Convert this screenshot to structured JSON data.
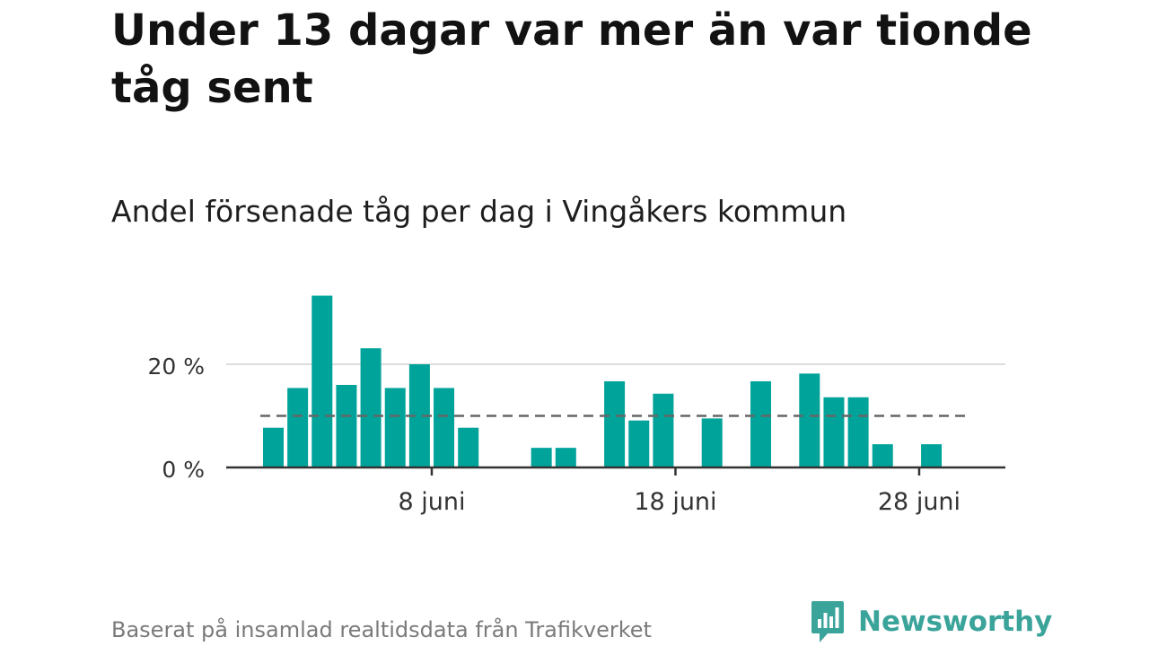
{
  "title": "Under 13 dagar var mer än var tionde tåg sent",
  "subtitle": "Andel försenade tåg per dag i Vingåkers kommun",
  "footer": {
    "source": "Baserat på insamlad realtidsdata från Trafikverket",
    "brand": "Newsworthy",
    "brand_logo_icon": "newsworthy-chart-bubble-icon"
  },
  "colors": {
    "bar": "#00a39a",
    "reference_line": "#666666",
    "grid": "#dddddd",
    "axis": "#333333",
    "brand": "#3aa39a"
  },
  "chart_data": {
    "type": "bar",
    "x_unit": "day of June",
    "x": [
      1,
      2,
      3,
      4,
      5,
      6,
      7,
      8,
      9,
      10,
      11,
      12,
      13,
      14,
      15,
      16,
      17,
      18,
      19,
      20,
      21,
      22,
      23,
      24,
      25,
      26,
      27,
      28,
      29,
      30
    ],
    "values": [
      7.7,
      15.4,
      33.3,
      16.0,
      23.1,
      15.4,
      20.0,
      15.4,
      7.7,
      0,
      0,
      3.8,
      3.8,
      0,
      16.7,
      9.1,
      14.3,
      0,
      9.5,
      0,
      16.7,
      0,
      18.2,
      13.6,
      13.6,
      4.5,
      0,
      4.5,
      0,
      0
    ],
    "reference_value": 10,
    "reference_style": "dashed",
    "y_ticks": [
      0,
      20
    ],
    "y_tick_labels": [
      "0 %",
      "20 %"
    ],
    "x_ticks": [
      8,
      18,
      28
    ],
    "x_tick_labels": [
      "8 juni",
      "18 juni",
      "28 juni"
    ],
    "ylim": [
      0,
      35
    ],
    "grid": true,
    "legend": "none"
  }
}
